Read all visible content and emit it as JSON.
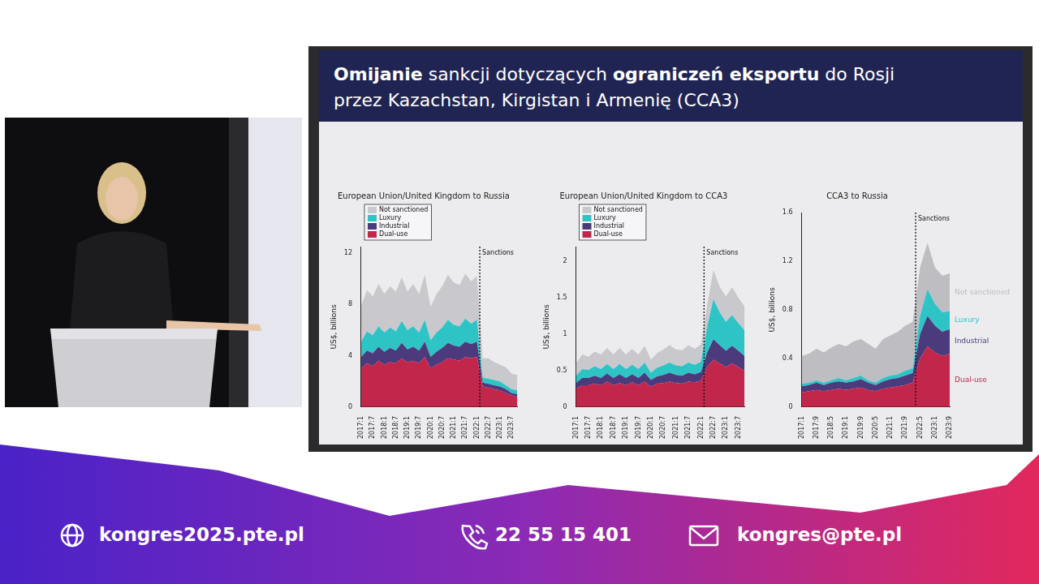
{
  "slide": {
    "title_lines": [
      [
        {
          "text": "Omijanie",
          "bold": true
        },
        {
          "text": " sankcji dotyczących ",
          "bold": false
        },
        {
          "text": "ograniczeń eksportu",
          "bold": true
        },
        {
          "text": " do Rosji",
          "bold": false
        }
      ],
      [
        {
          "text": "przez Kazachstan, Kirgistan i Armenię (CCA3)",
          "bold": false
        }
      ]
    ]
  },
  "footer": {
    "website": "kongres2025.pte.pl",
    "phone": "22 55 15 401",
    "email": "kongres@pte.pl"
  },
  "chart_data": [
    {
      "type": "area",
      "stacked": true,
      "grid": false,
      "legend": "top-left",
      "title": "European Union/United Kingdom to Russia",
      "y_label": "US$, billions",
      "categories": [
        "2017:1",
        null,
        "2017:7",
        null,
        "2018:1",
        null,
        "2018:7",
        null,
        "2019:1",
        null,
        "2019:7",
        null,
        "2020:1",
        null,
        "2020:7",
        null,
        "2021:1",
        null,
        "2021:7",
        null,
        "2022:1",
        null,
        "2022:7",
        null,
        "2023:1",
        null,
        "2023:7",
        null
      ],
      "ylim": [
        0,
        12.5
      ],
      "yticks": [
        0,
        4,
        8,
        12
      ],
      "annotations": [
        {
          "text": "Sanctions",
          "x": 20.5
        }
      ],
      "series": [
        {
          "name": "Not sanctioned",
          "color": "#c9c9cd",
          "values": [
            2.8,
            3.2,
            3.0,
            3.3,
            3.0,
            3.2,
            3.1,
            3.4,
            3.0,
            3.3,
            3.0,
            3.5,
            2.6,
            3.0,
            3.2,
            3.5,
            3.3,
            3.2,
            3.5,
            3.3,
            3.4,
            1.5,
            1.6,
            1.4,
            1.3,
            1.4,
            1.2,
            1.2
          ]
        },
        {
          "name": "Luxury",
          "color": "#2ec4c6",
          "values": [
            1.2,
            1.5,
            1.4,
            1.6,
            1.5,
            1.6,
            1.5,
            1.7,
            1.5,
            1.6,
            1.4,
            1.7,
            1.3,
            1.5,
            1.6,
            1.8,
            1.6,
            1.6,
            1.8,
            1.6,
            1.7,
            0.4,
            0.4,
            0.4,
            0.4,
            0.3,
            0.3,
            0.3
          ]
        },
        {
          "name": "Industrial",
          "color": "#4b3a7c",
          "values": [
            0.9,
            1.0,
            1.0,
            1.1,
            1.0,
            1.1,
            1.0,
            1.2,
            1.0,
            1.1,
            1.0,
            1.2,
            0.9,
            1.0,
            1.1,
            1.2,
            1.1,
            1.1,
            1.2,
            1.1,
            1.2,
            0.3,
            0.3,
            0.3,
            0.3,
            0.3,
            0.2,
            0.2
          ]
        },
        {
          "name": "Dual-use",
          "color": "#c2264b",
          "values": [
            3.0,
            3.4,
            3.2,
            3.6,
            3.3,
            3.5,
            3.4,
            3.8,
            3.5,
            3.6,
            3.4,
            3.9,
            3.0,
            3.3,
            3.5,
            3.8,
            3.7,
            3.6,
            3.9,
            3.8,
            3.9,
            1.6,
            1.5,
            1.4,
            1.3,
            1.1,
            0.9,
            0.8
          ]
        }
      ]
    },
    {
      "type": "area",
      "stacked": true,
      "grid": false,
      "legend": "top-left",
      "title": "European Union/United Kingdom to CCA3",
      "y_label": "US$, billions",
      "categories": [
        "2017:1",
        null,
        "2017:7",
        null,
        "2018:1",
        null,
        "2018:7",
        null,
        "2019:1",
        null,
        "2019:7",
        null,
        "2020:1",
        null,
        "2020:7",
        null,
        "2021:1",
        null,
        "2021:7",
        null,
        "2022:1",
        null,
        "2022:7",
        null,
        "2023:1",
        null,
        "2023:7",
        null
      ],
      "ylim": [
        0,
        2.2
      ],
      "yticks": [
        0,
        0.5,
        1,
        1.5,
        2
      ],
      "annotations": [
        {
          "text": "Sanctions",
          "x": 20.5
        }
      ],
      "series": [
        {
          "name": "Not sanctioned",
          "color": "#c9c9cd",
          "values": [
            0.17,
            0.2,
            0.18,
            0.2,
            0.2,
            0.22,
            0.2,
            0.22,
            0.2,
            0.22,
            0.2,
            0.23,
            0.18,
            0.2,
            0.22,
            0.24,
            0.22,
            0.22,
            0.24,
            0.22,
            0.24,
            0.3,
            0.4,
            0.35,
            0.35,
            0.38,
            0.35,
            0.33
          ]
        },
        {
          "name": "Luxury",
          "color": "#2ec4c6",
          "values": [
            0.1,
            0.12,
            0.11,
            0.13,
            0.12,
            0.13,
            0.12,
            0.14,
            0.12,
            0.13,
            0.12,
            0.14,
            0.1,
            0.12,
            0.13,
            0.14,
            0.13,
            0.13,
            0.14,
            0.13,
            0.14,
            0.35,
            0.55,
            0.45,
            0.4,
            0.42,
            0.38,
            0.35
          ]
        },
        {
          "name": "Industrial",
          "color": "#4b3a7c",
          "values": [
            0.08,
            0.1,
            0.1,
            0.11,
            0.1,
            0.11,
            0.1,
            0.12,
            0.1,
            0.11,
            0.1,
            0.12,
            0.09,
            0.1,
            0.11,
            0.12,
            0.11,
            0.11,
            0.12,
            0.11,
            0.12,
            0.2,
            0.28,
            0.25,
            0.22,
            0.24,
            0.22,
            0.2
          ]
        },
        {
          "name": "Dual-use",
          "color": "#c2264b",
          "values": [
            0.25,
            0.3,
            0.3,
            0.32,
            0.3,
            0.35,
            0.3,
            0.33,
            0.3,
            0.34,
            0.3,
            0.35,
            0.28,
            0.32,
            0.33,
            0.35,
            0.33,
            0.32,
            0.35,
            0.34,
            0.36,
            0.55,
            0.65,
            0.6,
            0.55,
            0.6,
            0.55,
            0.5
          ]
        }
      ]
    },
    {
      "type": "area",
      "stacked": true,
      "grid": false,
      "legend": "right",
      "title": "CCA3 to Russia",
      "y_label": "US$, billions",
      "categories": [
        "2017:1",
        null,
        "2017:9",
        null,
        "2018:5",
        null,
        "2019:1",
        null,
        "2019:9",
        null,
        "2020:5",
        null,
        "2021:1",
        null,
        "2021:9",
        null,
        "2022:5",
        null,
        "2023:1",
        null,
        "2023:9"
      ],
      "ylim": [
        0,
        1.6
      ],
      "yticks": [
        0,
        0.4,
        0.8,
        1.2,
        1.6
      ],
      "annotations": [
        {
          "text": "Sanctions",
          "x": 15.4
        }
      ],
      "series": [
        {
          "name": "Not sanctioned",
          "color": "#bdbdc2",
          "values": [
            0.23,
            0.24,
            0.26,
            0.25,
            0.27,
            0.28,
            0.28,
            0.3,
            0.3,
            0.3,
            0.28,
            0.32,
            0.33,
            0.35,
            0.37,
            0.38,
            0.4,
            0.38,
            0.3,
            0.3,
            0.31
          ]
        },
        {
          "name": "Luxury",
          "color": "#2ec4c6",
          "values": [
            0.02,
            0.02,
            0.02,
            0.02,
            0.02,
            0.03,
            0.02,
            0.03,
            0.03,
            0.02,
            0.02,
            0.03,
            0.03,
            0.03,
            0.04,
            0.04,
            0.15,
            0.22,
            0.18,
            0.16,
            0.15
          ]
        },
        {
          "name": "Industrial",
          "color": "#4b3a7c",
          "values": [
            0.05,
            0.05,
            0.06,
            0.05,
            0.06,
            0.06,
            0.06,
            0.06,
            0.07,
            0.06,
            0.05,
            0.06,
            0.07,
            0.07,
            0.08,
            0.08,
            0.2,
            0.25,
            0.22,
            0.2,
            0.2
          ]
        },
        {
          "name": "Dual-use",
          "color": "#c2264b",
          "values": [
            0.12,
            0.13,
            0.14,
            0.13,
            0.14,
            0.15,
            0.14,
            0.15,
            0.16,
            0.14,
            0.13,
            0.15,
            0.16,
            0.17,
            0.18,
            0.2,
            0.4,
            0.5,
            0.45,
            0.42,
            0.44
          ]
        }
      ]
    }
  ]
}
